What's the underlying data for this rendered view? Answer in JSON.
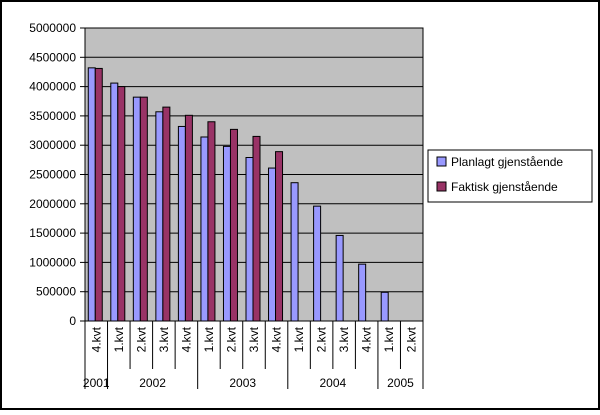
{
  "chart_data": {
    "type": "bar",
    "categories": [
      "4.kvt",
      "1.kvt",
      "2.kvt",
      "3.kvt",
      "4.kvt",
      "1.kvt",
      "2.kvt",
      "3.kvt",
      "4.kvt",
      "1.kvt",
      "2.kvt",
      "3.kvt",
      "4.kvt",
      "1.kvt",
      "2.kvt"
    ],
    "year_groups": [
      {
        "label": "2001",
        "start": 0,
        "end": 0
      },
      {
        "label": "2002",
        "start": 1,
        "end": 4
      },
      {
        "label": "2003",
        "start": 5,
        "end": 8
      },
      {
        "label": "2004",
        "start": 9,
        "end": 12
      },
      {
        "label": "2005",
        "start": 13,
        "end": 14
      }
    ],
    "series": [
      {
        "name": "Planlagt gjenstående",
        "color": "#9999ff",
        "values": [
          4320000,
          4060000,
          3820000,
          3570000,
          3320000,
          3140000,
          2980000,
          2790000,
          2610000,
          2360000,
          1960000,
          1460000,
          970000,
          490000,
          null
        ]
      },
      {
        "name": "Faktisk gjenstående",
        "color": "#993366",
        "values": [
          4310000,
          4000000,
          3820000,
          3650000,
          3510000,
          3400000,
          3270000,
          3150000,
          2890000,
          null,
          null,
          null,
          null,
          null,
          null
        ]
      }
    ],
    "yticks": [
      "0",
      "500000",
      "1000000",
      "1500000",
      "2000000",
      "2500000",
      "3000000",
      "3500000",
      "4000000",
      "4500000",
      "5000000"
    ],
    "ylim": [
      0,
      5000000
    ],
    "grid": true,
    "plot_background": "#c0c0c0",
    "legend_position": "right"
  }
}
